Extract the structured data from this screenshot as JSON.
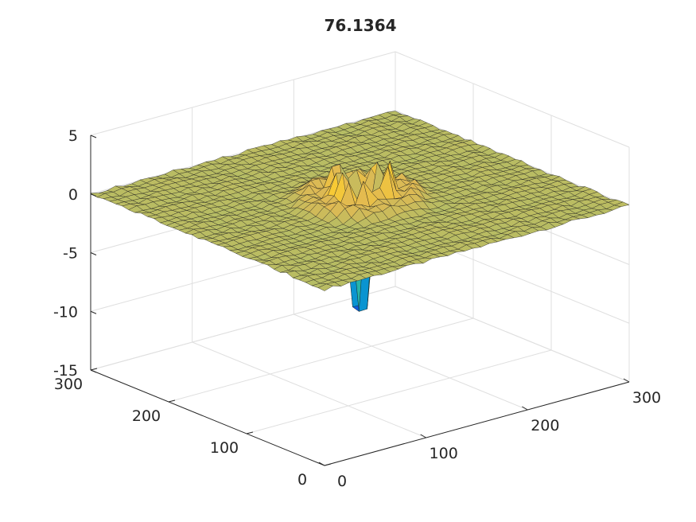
{
  "chart_data": {
    "type": "surface",
    "title": "76.1364",
    "xlabel": "",
    "ylabel": "",
    "zlabel": "",
    "xlim": [
      0,
      300
    ],
    "ylim": [
      0,
      300
    ],
    "zlim": [
      -15,
      5
    ],
    "x_ticks": [
      "0",
      "100",
      "200",
      "300"
    ],
    "y_ticks": [
      "0",
      "100",
      "200",
      "300"
    ],
    "z_ticks": [
      "5",
      "0",
      "-5",
      "-10",
      "-15"
    ],
    "grid": true,
    "colormap": "parula",
    "surface": {
      "grid_points": 38,
      "baseline_z": 0,
      "features": [
        {
          "kind": "ring",
          "center": [
            150,
            150
          ],
          "radius": 42,
          "amplitude": 0.9
        },
        {
          "kind": "crater-wall",
          "center": [
            150,
            150
          ],
          "radius": 22,
          "amplitude": 2.2
        },
        {
          "kind": "pit",
          "center": [
            150,
            150
          ],
          "radius": 9,
          "depth": -13.8
        }
      ]
    },
    "colors": {
      "edge": "#1a1a1a",
      "grid": "#dfdfdf",
      "axis": "#262626"
    }
  }
}
